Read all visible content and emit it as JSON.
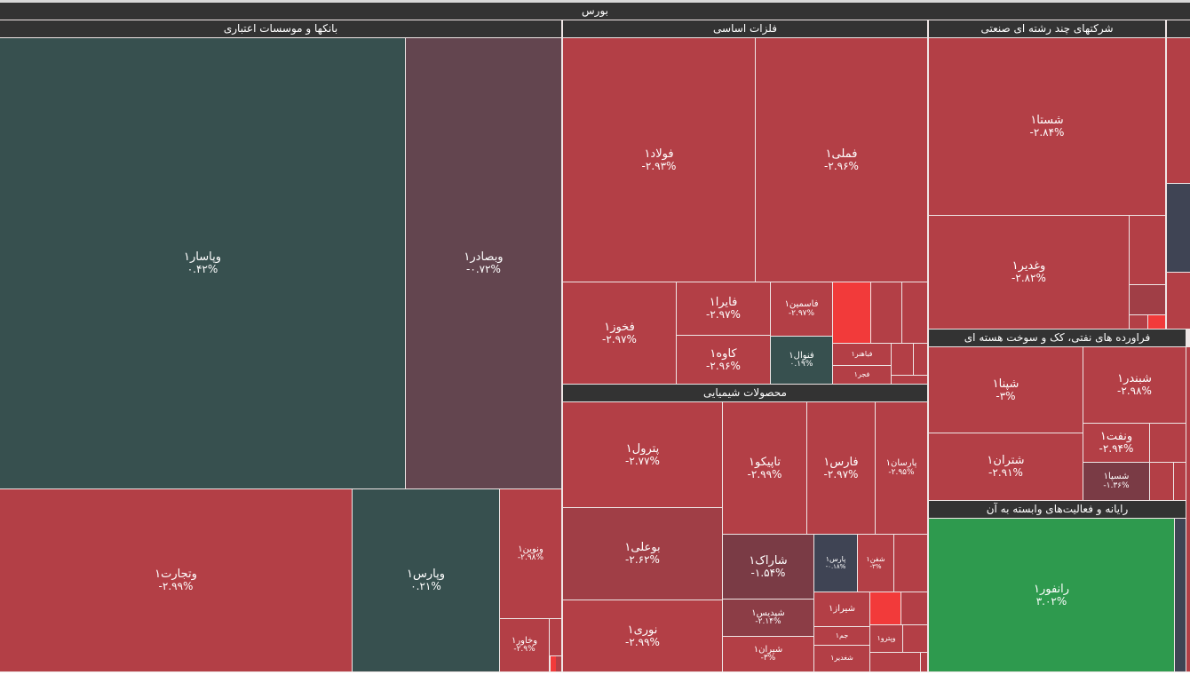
{
  "root_title": "بورس",
  "colors": {
    "red": "#b33f46",
    "mid_red": "#a03e46",
    "dark_red": "#7a3b45",
    "rose": "#8c3d46",
    "bright_red": "#f23a3a",
    "teal": "#37504f",
    "maroon": "#63454f",
    "slate": "#3f4454",
    "green": "#2e9a4e"
  },
  "sectors": [
    {
      "title": "بانکها و موسسات اعتباری"
    },
    {
      "title": "فلزات اساسی"
    },
    {
      "title": "شرکتهای چند رشته ای صنعتی"
    },
    {
      "title": "محصولات شیمیایی"
    },
    {
      "title": "فراورده های نفتی، کک و سوخت هسته ای"
    },
    {
      "title": "رایانه و فعالیت‌های وابسته به آن"
    }
  ],
  "tiles": [
    {
      "name": "وپاسار۱",
      "change": "۰.۴۲%"
    },
    {
      "name": "وبصادر۱",
      "change": "-۰.۷۲%"
    },
    {
      "name": "وتجارت۱",
      "change": "-۲.۹۹%"
    },
    {
      "name": "وپارس۱",
      "change": "۰.۲۱%"
    },
    {
      "name": "ونوین۱",
      "change": "-۲.۹۸%"
    },
    {
      "name": "وخاور۱",
      "change": "-۲.۹%"
    },
    {
      "name": "فولاد۱",
      "change": "-۲.۹۳%"
    },
    {
      "name": "فملی۱",
      "change": "-۲.۹۶%"
    },
    {
      "name": "فخوز۱",
      "change": "-۲.۹۷%"
    },
    {
      "name": "فایرا۱",
      "change": "-۲.۹۷%"
    },
    {
      "name": "کاوه۱",
      "change": "-۲.۹۶%"
    },
    {
      "name": "فاسمین۱",
      "change": "-۲.۹۷%"
    },
    {
      "name": "فنوال۱",
      "change": "۰.۱۹%"
    },
    {
      "name": "فباهنر۱",
      "change": ""
    },
    {
      "name": "فجر۱",
      "change": ""
    },
    {
      "name": "پترول۱",
      "change": "-۲.۷۷%"
    },
    {
      "name": "بوعلی۱",
      "change": "-۲.۶۲%"
    },
    {
      "name": "نوری۱",
      "change": "-۲.۹۹%"
    },
    {
      "name": "تاپیکو۱",
      "change": "-۲.۹۹%"
    },
    {
      "name": "فارس۱",
      "change": "-۲.۹۷%"
    },
    {
      "name": "پارسان۱",
      "change": "-۲.۹۵%"
    },
    {
      "name": "شاراک۱",
      "change": "-۱.۵۴%"
    },
    {
      "name": "شپدیس۱",
      "change": "-۲.۱۴%"
    },
    {
      "name": "شیران۱",
      "change": "-۳%"
    },
    {
      "name": "پارس۱",
      "change": "-۰.۱۸%"
    },
    {
      "name": "شفن۱",
      "change": "-۳%"
    },
    {
      "name": "شیراز۱",
      "change": ""
    },
    {
      "name": "جم۱",
      "change": ""
    },
    {
      "name": "شغدیر۱",
      "change": ""
    },
    {
      "name": "وپترو۱",
      "change": ""
    },
    {
      "name": "شستا۱",
      "change": "-۲.۸۴%"
    },
    {
      "name": "وغدیر۱",
      "change": "-۲.۸۲%"
    },
    {
      "name": "شپنا۱",
      "change": "-۳%"
    },
    {
      "name": "شبندر۱",
      "change": "-۲.۹۸%"
    },
    {
      "name": "شتران۱",
      "change": "-۲.۹۱%"
    },
    {
      "name": "ونفت۱",
      "change": "-۲.۹۴%"
    },
    {
      "name": "شسپا۱",
      "change": "-۱.۳۶%"
    },
    {
      "name": "رانفور۱",
      "change": "۳.۰۲%"
    }
  ]
}
